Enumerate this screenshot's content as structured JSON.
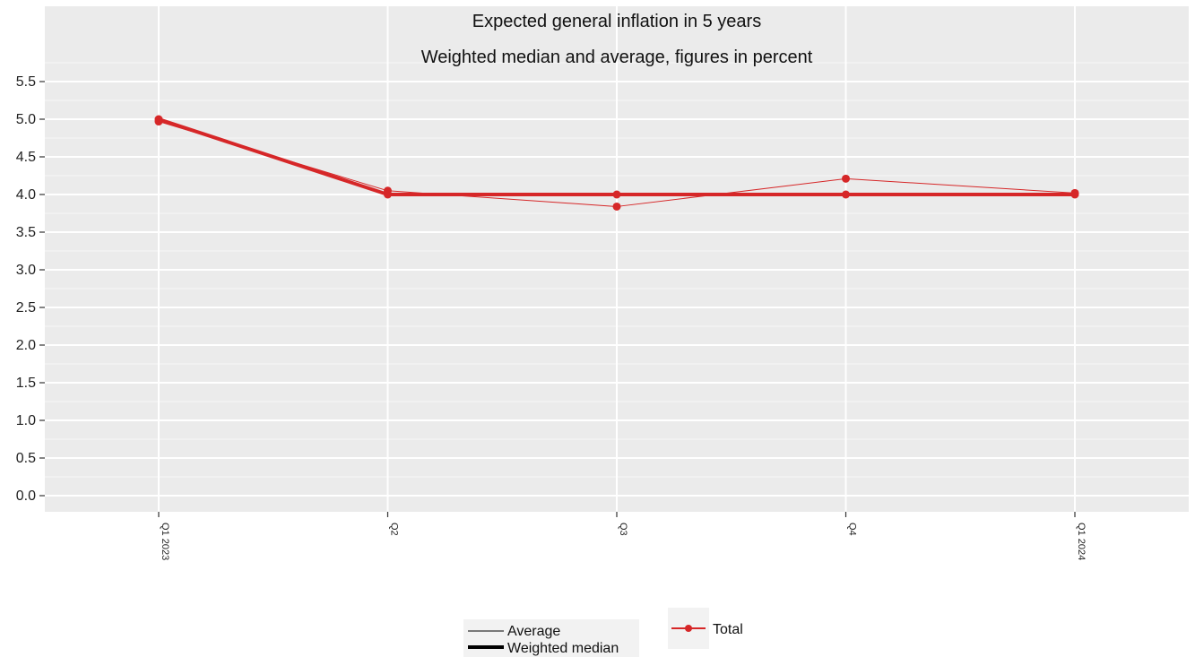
{
  "chart_data": {
    "type": "line",
    "title": "Expected general inflation in 5 years",
    "subtitle": "Weighted median and average, figures in percent",
    "categories": [
      "Q1 2023",
      "Q2",
      "Q3",
      "Q4",
      "Q1 2024"
    ],
    "ylim": [
      0,
      5.5
    ],
    "yticks": [
      "0.0",
      "0.5",
      "1.0",
      "1.5",
      "2.0",
      "2.5",
      "3.0",
      "3.5",
      "4.0",
      "4.5",
      "5.0",
      "5.5"
    ],
    "grid": true,
    "legend_position": "bottom",
    "series": [
      {
        "name": "Total",
        "measure": "Weighted median",
        "color": "#d62728",
        "values": [
          5.0,
          4.0,
          4.0,
          4.0,
          4.0
        ]
      },
      {
        "name": "Total",
        "measure": "Average",
        "color": "#d62728",
        "values": [
          4.97,
          4.05,
          3.84,
          4.21,
          4.02
        ]
      }
    ],
    "legend": {
      "linetype_items": [
        "Average",
        "Weighted median"
      ],
      "color_items": [
        "Total"
      ]
    }
  }
}
